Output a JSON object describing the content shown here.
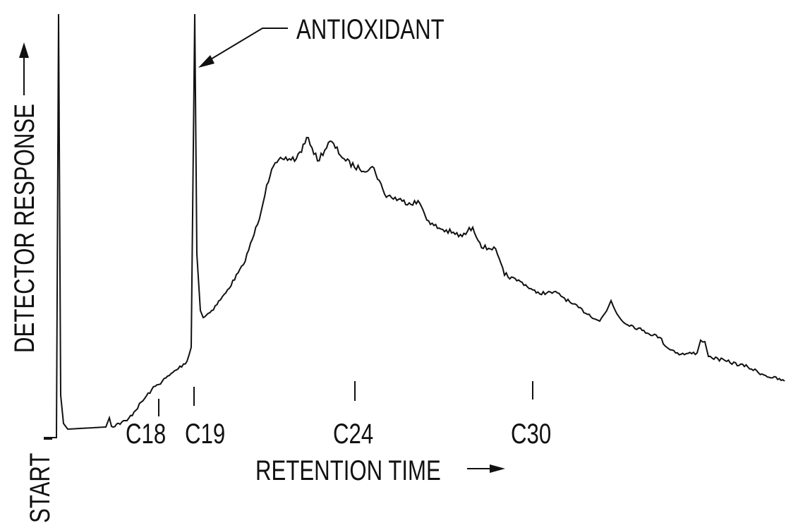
{
  "chart_data": {
    "type": "line",
    "ylabel": "DETECTOR RESPONSE",
    "xlabel": "RETENTION TIME",
    "annotations": [
      "ANTIOXIDANT",
      "START"
    ],
    "categories": [
      "C18",
      "C19",
      "C24",
      "C30"
    ]
  }
}
